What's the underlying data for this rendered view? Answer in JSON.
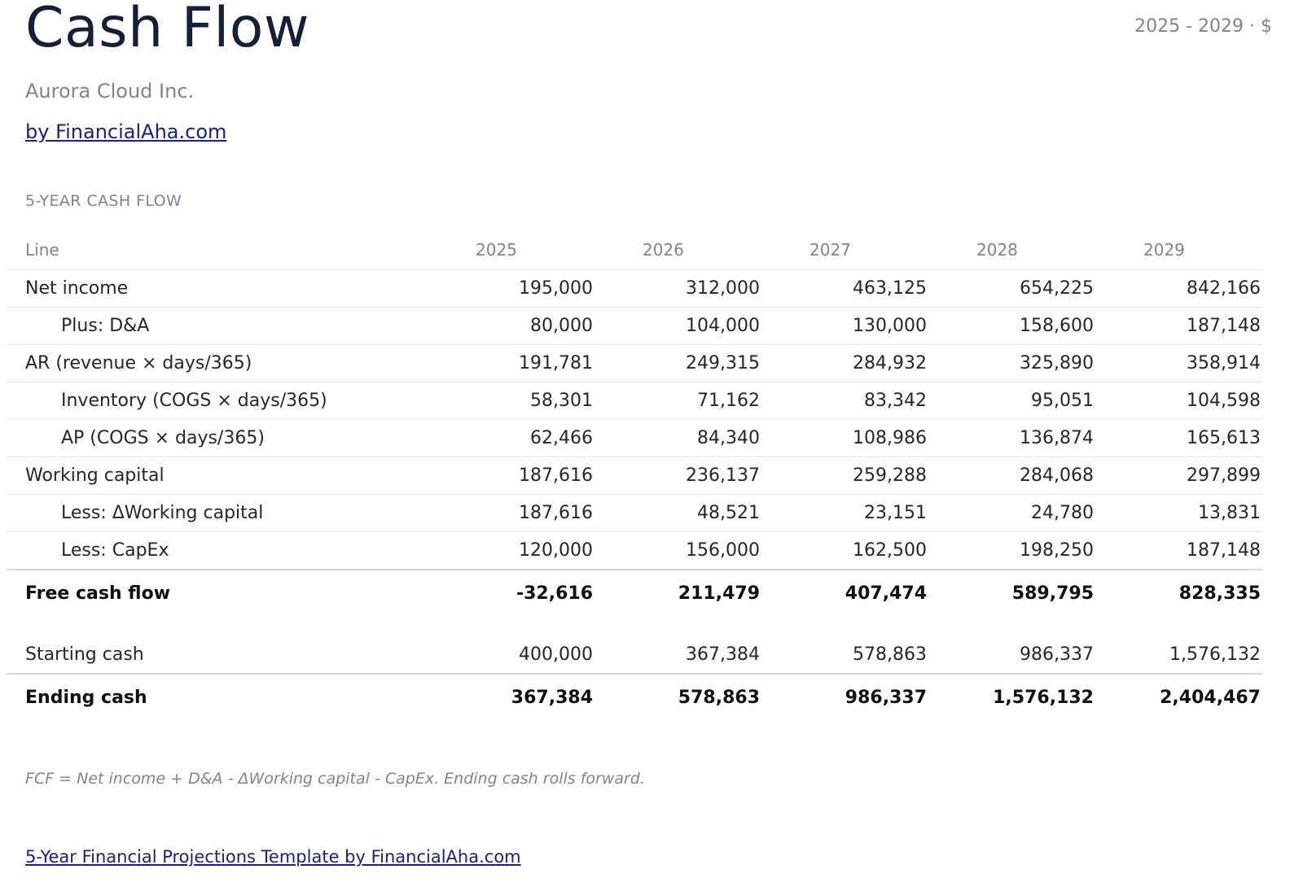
{
  "header": {
    "title": "Cash Flow",
    "period": "2025 - 2029 · $",
    "company": "Aurora Cloud Inc.",
    "by_link": "by FinancialAha.com"
  },
  "section": {
    "label": "5-YEAR CASH FLOW"
  },
  "table": {
    "columns": [
      "Line",
      "2025",
      "2026",
      "2027",
      "2028",
      "2029"
    ],
    "rows": [
      {
        "label": "Net income",
        "values": [
          "195,000",
          "312,000",
          "463,125",
          "654,225",
          "842,166"
        ]
      },
      {
        "label": "Plus: D&A",
        "values": [
          "80,000",
          "104,000",
          "130,000",
          "158,600",
          "187,148"
        ]
      },
      {
        "label": "AR (revenue × days/365)",
        "values": [
          "191,781",
          "249,315",
          "284,932",
          "325,890",
          "358,914"
        ]
      },
      {
        "label": "Inventory (COGS × days/365)",
        "values": [
          "58,301",
          "71,162",
          "83,342",
          "95,051",
          "104,598"
        ]
      },
      {
        "label": "AP (COGS × days/365)",
        "values": [
          "62,466",
          "84,340",
          "108,986",
          "136,874",
          "165,613"
        ]
      },
      {
        "label": "Working capital",
        "values": [
          "187,616",
          "236,137",
          "259,288",
          "284,068",
          "297,899"
        ]
      },
      {
        "label": "Less: ΔWorking capital",
        "values": [
          "187,616",
          "48,521",
          "23,151",
          "24,780",
          "13,831"
        ]
      },
      {
        "label": "Less: CapEx",
        "values": [
          "120,000",
          "156,000",
          "162,500",
          "198,250",
          "187,148"
        ]
      },
      {
        "label": "Free cash flow",
        "values": [
          "-32,616",
          "211,479",
          "407,474",
          "589,795",
          "828,335"
        ]
      },
      {
        "label": "Starting cash",
        "values": [
          "400,000",
          "367,384",
          "578,863",
          "986,337",
          "1,576,132"
        ]
      },
      {
        "label": "Ending cash",
        "values": [
          "367,384",
          "578,863",
          "986,337",
          "1,576,132",
          "2,404,467"
        ]
      }
    ]
  },
  "note": "FCF = Net income + D&A - ΔWorking capital - CapEx. Ending cash rolls forward.",
  "footer": {
    "link": "5-Year Financial Projections Template by FinancialAha.com"
  }
}
